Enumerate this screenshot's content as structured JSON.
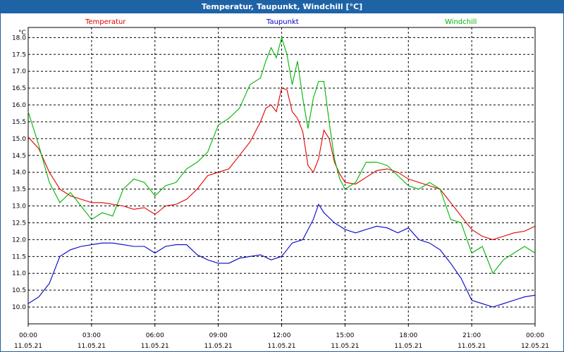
{
  "window": {
    "title": "Temperatur, Taupunkt, Windchill [°C]"
  },
  "chart_data": {
    "type": "line",
    "title": "Temperatur, Taupunkt, Windchill [°C]",
    "ylabel": "°C",
    "ylim": [
      9.5,
      18.3
    ],
    "xlim": [
      0,
      24
    ],
    "grid": true,
    "legend_position": "top",
    "yticks": [
      "10.0",
      "10.5",
      "11.0",
      "11.5",
      "12.0",
      "12.5",
      "13.0",
      "13.5",
      "14.0",
      "14.5",
      "15.0",
      "15.5",
      "16.0",
      "16.5",
      "17.0",
      "17.5",
      "18.0"
    ],
    "xticks": [
      {
        "time": "00:00",
        "date": "11.05.21"
      },
      {
        "time": "03:00",
        "date": "11.05.21"
      },
      {
        "time": "06:00",
        "date": "11.05.21"
      },
      {
        "time": "09:00",
        "date": "11.05.21"
      },
      {
        "time": "12:00",
        "date": "11.05.21"
      },
      {
        "time": "15:00",
        "date": "11.05.21"
      },
      {
        "time": "18:00",
        "date": "11.05.21"
      },
      {
        "time": "21:00",
        "date": "11.05.21"
      },
      {
        "time": "00:00",
        "date": "12.05.21"
      }
    ],
    "series": [
      {
        "name": "Temperatur",
        "color": "#e00000",
        "x": [
          0,
          0.5,
          1,
          1.5,
          2,
          2.5,
          3,
          3.5,
          4,
          4.5,
          5,
          5.5,
          6,
          6.5,
          7,
          7.5,
          8,
          8.5,
          9,
          9.5,
          10,
          10.5,
          11,
          11.25,
          11.5,
          11.75,
          12,
          12.25,
          12.5,
          12.75,
          13,
          13.25,
          13.5,
          13.75,
          14,
          14.25,
          14.5,
          14.75,
          15,
          15.5,
          16,
          16.5,
          17,
          17.5,
          18,
          18.5,
          19,
          19.5,
          20,
          20.5,
          21,
          21.5,
          22,
          22.5,
          23,
          23.5,
          24
        ],
        "y": [
          15.05,
          14.7,
          14.0,
          13.5,
          13.3,
          13.2,
          13.1,
          13.1,
          13.05,
          13.0,
          12.9,
          12.95,
          12.75,
          13.0,
          13.05,
          13.2,
          13.5,
          13.9,
          14.0,
          14.1,
          14.5,
          14.9,
          15.5,
          15.9,
          16.0,
          15.8,
          16.5,
          16.45,
          15.8,
          15.6,
          15.2,
          14.2,
          14.0,
          14.4,
          15.25,
          15.0,
          14.3,
          13.95,
          13.7,
          13.65,
          13.85,
          14.05,
          14.1,
          14.0,
          13.8,
          13.7,
          13.6,
          13.5,
          13.1,
          12.7,
          12.3,
          12.1,
          12.0,
          12.1,
          12.2,
          12.25,
          12.4
        ]
      },
      {
        "name": "Taupunkt",
        "color": "#0000c8",
        "x": [
          0,
          0.5,
          1,
          1.5,
          2,
          2.5,
          3,
          3.5,
          4,
          4.5,
          5,
          5.5,
          6,
          6.5,
          7,
          7.5,
          8,
          8.5,
          9,
          9.5,
          10,
          10.5,
          11,
          11.5,
          12,
          12.5,
          13,
          13.5,
          13.75,
          14,
          14.5,
          15,
          15.5,
          16,
          16.5,
          17,
          17.5,
          18,
          18.5,
          19,
          19.5,
          20,
          20.5,
          21,
          21.5,
          22,
          22.5,
          23,
          23.5,
          24
        ],
        "y": [
          10.1,
          10.3,
          10.7,
          11.5,
          11.7,
          11.8,
          11.85,
          11.9,
          11.9,
          11.85,
          11.8,
          11.8,
          11.6,
          11.8,
          11.85,
          11.85,
          11.55,
          11.4,
          11.3,
          11.3,
          11.45,
          11.5,
          11.55,
          11.4,
          11.5,
          11.9,
          12.0,
          12.6,
          13.05,
          12.8,
          12.5,
          12.3,
          12.2,
          12.3,
          12.4,
          12.35,
          12.2,
          12.35,
          12.0,
          11.9,
          11.7,
          11.3,
          10.85,
          10.2,
          10.1,
          10.0,
          10.1,
          10.2,
          10.3,
          10.35
        ]
      },
      {
        "name": "Windchill",
        "color": "#00b400",
        "x": [
          0,
          0.5,
          1,
          1.5,
          2,
          2.5,
          3,
          3.5,
          4,
          4.5,
          5,
          5.5,
          6,
          6.5,
          7,
          7.5,
          8,
          8.5,
          9,
          9.5,
          10,
          10.5,
          11,
          11.25,
          11.5,
          11.75,
          12,
          12.25,
          12.5,
          12.75,
          13,
          13.25,
          13.5,
          13.75,
          14,
          14.25,
          14.5,
          14.75,
          15,
          15.5,
          16,
          16.5,
          17,
          17.5,
          18,
          18.5,
          19,
          19.5,
          20,
          20.5,
          21,
          21.5,
          22,
          22.5,
          23,
          23.5,
          24
        ],
        "y": [
          15.8,
          14.8,
          13.7,
          13.1,
          13.4,
          13.0,
          12.6,
          12.8,
          12.7,
          13.5,
          13.8,
          13.7,
          13.3,
          13.6,
          13.7,
          14.1,
          14.3,
          14.6,
          15.4,
          15.6,
          15.9,
          16.6,
          16.8,
          17.3,
          17.7,
          17.4,
          18.0,
          17.5,
          16.6,
          17.3,
          16.2,
          15.3,
          16.2,
          16.7,
          16.7,
          15.5,
          14.4,
          13.8,
          13.5,
          13.7,
          14.3,
          14.3,
          14.2,
          13.9,
          13.6,
          13.5,
          13.7,
          13.5,
          12.6,
          12.5,
          11.6,
          11.8,
          11.0,
          11.4,
          11.6,
          11.8,
          11.6
        ]
      }
    ]
  }
}
